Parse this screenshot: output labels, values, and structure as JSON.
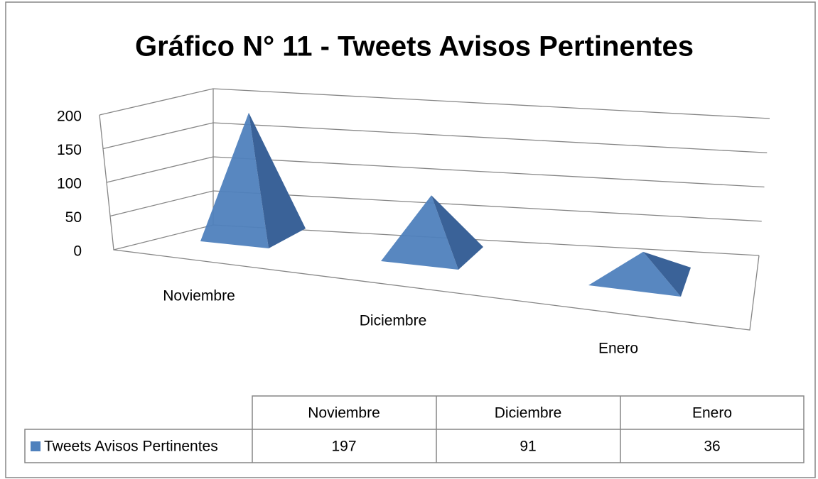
{
  "chart_data": {
    "type": "pyramid",
    "title": "Gráfico N° 11 - Tweets Avisos Pertinentes",
    "categories": [
      "Noviembre",
      "Diciembre",
      "Enero"
    ],
    "series": [
      {
        "name": "Tweets Avisos Pertinentes",
        "color": "#4f81bd",
        "values": [
          197,
          91,
          36
        ]
      }
    ],
    "ylim": [
      0,
      200
    ],
    "yticks": [
      0,
      50,
      100,
      150,
      200
    ],
    "grid": true,
    "data_table": true
  }
}
